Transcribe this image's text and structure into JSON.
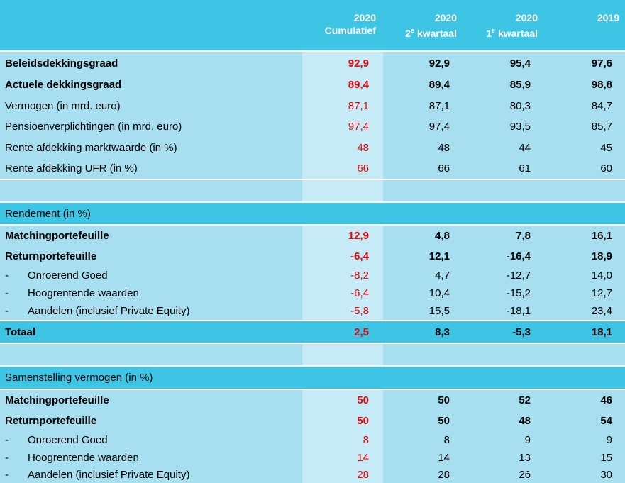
{
  "header": {
    "col_cum_year": "2020",
    "col_cum_label": "Cumulatief",
    "col_q2_year": "2020",
    "col_q2_sup_num": "2",
    "col_q2_sup": "e",
    "col_q2_label": "kwartaal",
    "col_q1_year": "2020",
    "col_q1_sup_num": "1",
    "col_q1_sup": "e",
    "col_q1_label": "kwartaal",
    "col_2019": "2019"
  },
  "section1": {
    "rows": [
      {
        "label": "Beleidsdekkingsgraad",
        "cum": "92,9",
        "q2": "92,9",
        "q1": "95,4",
        "y19": "97,6"
      },
      {
        "label": "Actuele dekkingsgraad",
        "cum": "89,4",
        "q2": "89,4",
        "q1": "85,9",
        "y19": "98,8"
      },
      {
        "label": "Vermogen (in mrd. euro)",
        "cum": "87,1",
        "q2": "87,1",
        "q1": "80,3",
        "y19": "84,7"
      },
      {
        "label": "Pensioenverplichtingen (in mrd. euro)",
        "cum": "97,4",
        "q2": "97,4",
        "q1": "93,5",
        "y19": "85,7"
      },
      {
        "label": "Rente afdekking marktwaarde (in %)",
        "cum": "48",
        "q2": "48",
        "q1": "44",
        "y19": "45"
      },
      {
        "label": "Rente afdekking UFR (in %)",
        "cum": "66",
        "q2": "66",
        "q1": "61",
        "y19": "60"
      }
    ]
  },
  "section2": {
    "title": "Rendement (in %)",
    "rows": [
      {
        "label": "Matchingportefeuille",
        "cum": "12,9",
        "q2": "4,8",
        "q1": "7,8",
        "y19": "16,1"
      },
      {
        "label": "Returnportefeuille",
        "cum": "-6,4",
        "q2": "12,1",
        "q1": "-16,4",
        "y19": "18,9"
      },
      {
        "dash": "-",
        "label": "Onroerend Goed",
        "cum": "-8,2",
        "q2": "4,7",
        "q1": "-12,7",
        "y19": "14,0"
      },
      {
        "dash": "-",
        "label": "Hoogrentende waarden",
        "cum": "-6,4",
        "q2": "10,4",
        "q1": "-15,2",
        "y19": "12,7"
      },
      {
        "dash": "-",
        "label": "Aandelen (inclusief Private Equity)",
        "cum": "-5,8",
        "q2": "15,5",
        "q1": "-18,1",
        "y19": "23,4"
      }
    ],
    "total": {
      "label": "Totaal",
      "cum": "2,5",
      "q2": "8,3",
      "q1": "-5,3",
      "y19": "18,1"
    }
  },
  "section3": {
    "title": "Samenstelling vermogen (in %)",
    "rows": [
      {
        "label": "Matchingportefeuille",
        "cum": "50",
        "q2": "50",
        "q1": "52",
        "y19": "46"
      },
      {
        "label": "Returnportefeuille",
        "cum": "50",
        "q2": "50",
        "q1": "48",
        "y19": "54"
      },
      {
        "dash": "-",
        "label": "Onroerend Goed",
        "cum": "8",
        "q2": "8",
        "q1": "9",
        "y19": "9"
      },
      {
        "dash": "-",
        "label": "Hoogrentende waarden",
        "cum": "14",
        "q2": "14",
        "q1": "13",
        "y19": "15"
      },
      {
        "dash": "-",
        "label": "Aandelen (inclusief Private Equity)",
        "cum": "28",
        "q2": "28",
        "q1": "26",
        "y19": "30"
      }
    ]
  },
  "colors": {
    "header": "#3ec5e5",
    "row": "#a8dff0",
    "highlight_col": "#c6ebf6",
    "accent": "#e3070b"
  }
}
